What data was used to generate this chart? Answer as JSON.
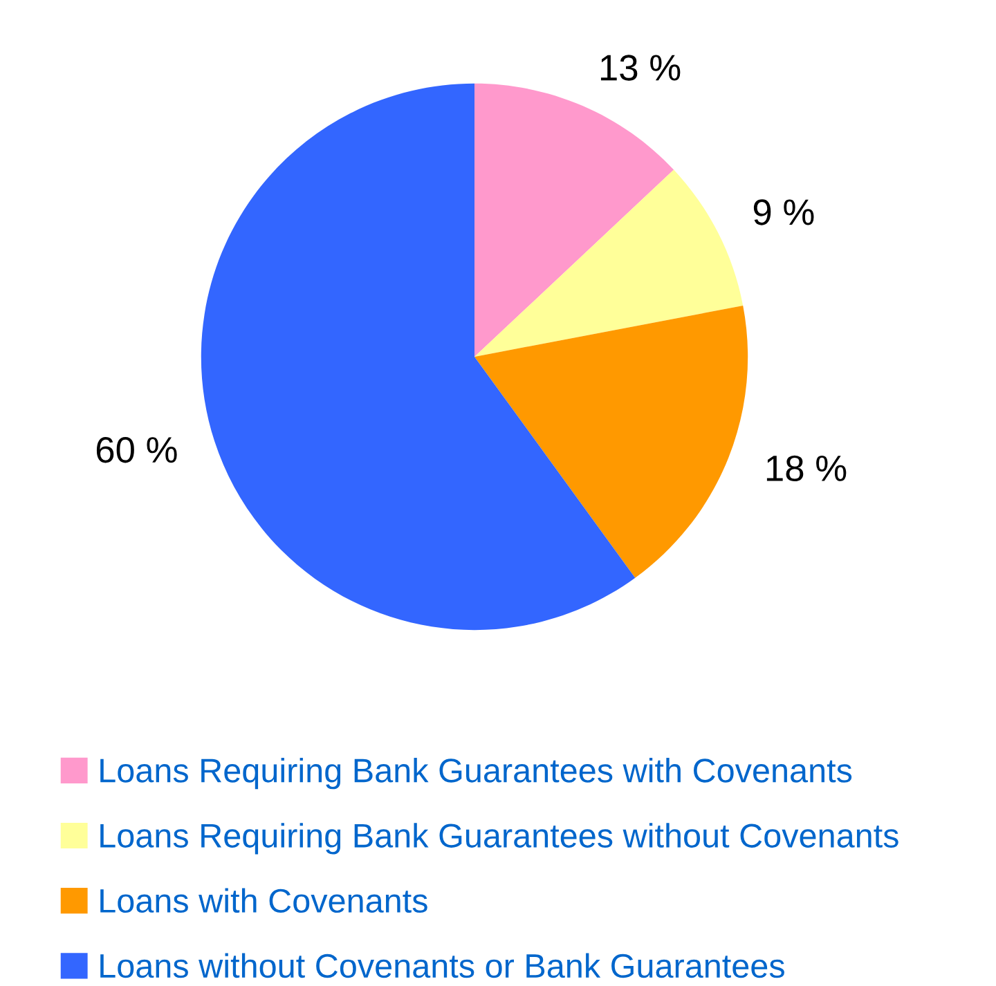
{
  "chart_data": {
    "type": "pie",
    "categories": [
      "Loans Requiring Bank Guarantees with Covenants",
      "Loans Requiring Bank Guarantees without Covenants",
      "Loans with Covenants",
      "Loans without Covenants or Bank Guarantees"
    ],
    "values": [
      13,
      9,
      18,
      60
    ],
    "colors": [
      "#ff99cc",
      "#ffff99",
      "#ff9900",
      "#3366ff"
    ],
    "value_labels": [
      "13 %",
      "9 %",
      "18 %",
      "60 %"
    ],
    "legend": "bottom"
  }
}
